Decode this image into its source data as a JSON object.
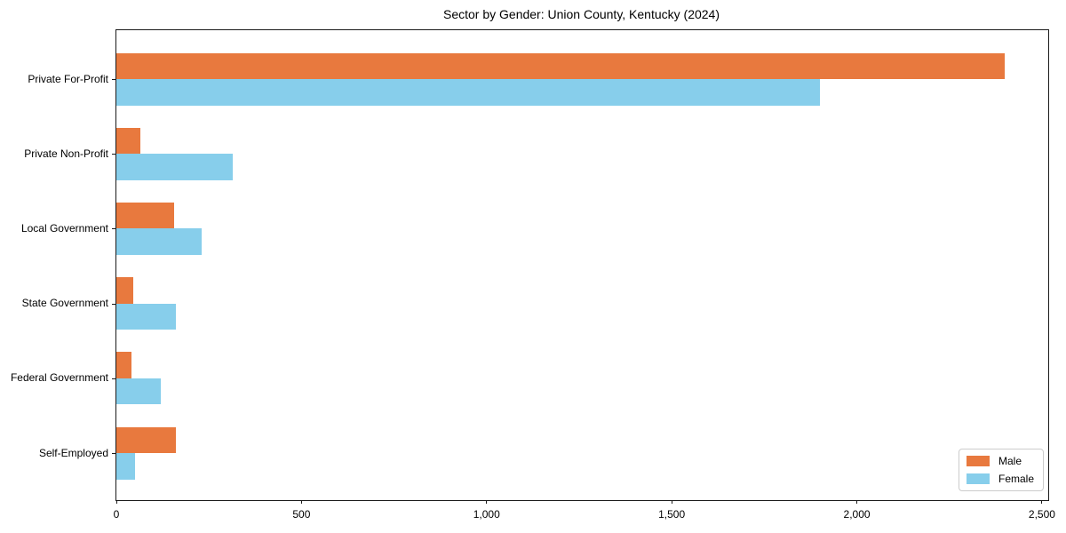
{
  "chart_data": {
    "type": "bar",
    "orientation": "horizontal",
    "title": "Sector by Gender: Union County, Kentucky (2024)",
    "categories": [
      "Private For-Profit",
      "Private Non-Profit",
      "Local Government",
      "State Government",
      "Federal Government",
      "Self-Employed"
    ],
    "series": [
      {
        "name": "Male",
        "color": "#e8793e",
        "values": [
          2400,
          65,
          155,
          45,
          40,
          160
        ]
      },
      {
        "name": "Female",
        "color": "#87ceeb",
        "values": [
          1900,
          315,
          230,
          160,
          120,
          50
        ]
      }
    ],
    "xlabel": "",
    "ylabel": "",
    "xlim": [
      0,
      2517
    ],
    "xticks": [
      {
        "value": 0,
        "label": "0"
      },
      {
        "value": 500,
        "label": "500"
      },
      {
        "value": 1000,
        "label": "1,000"
      },
      {
        "value": 1500,
        "label": "1,500"
      },
      {
        "value": 2000,
        "label": "2,000"
      },
      {
        "value": 2500,
        "label": "2,500"
      }
    ],
    "legend": {
      "position": "lower right"
    },
    "grid": false,
    "frame": true
  }
}
